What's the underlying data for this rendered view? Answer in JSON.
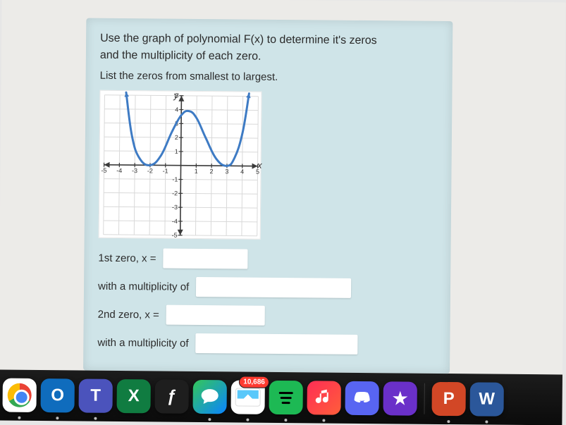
{
  "question": {
    "line1": "Use the graph of polynomial F(x) to determine it's zeros",
    "line2": "and the multiplicity of each zero.",
    "line3": "List the zeros from smallest to largest.",
    "answers": {
      "zero1_label": "1st zero, x =",
      "mult1_label": "with a multiplicity of",
      "zero2_label": "2nd zero, x =",
      "mult2_label": "with a multiplicity of"
    }
  },
  "chart": {
    "type": "line",
    "background_color": "#ffffff",
    "grid_color": "#d9d9d9",
    "axis_color": "#3a3a3a",
    "curve_color": "#3e7bc4",
    "curve_width": 3,
    "xlim": [
      -5,
      5
    ],
    "ylim": [
      -5,
      5
    ],
    "xtick_step": 1,
    "ytick_step": 1,
    "tick_labels_x": [
      "-5",
      "-4",
      "-3",
      "-2",
      "-1",
      "1",
      "2",
      "3",
      "4",
      "5"
    ],
    "tick_labels_y": [
      "-5",
      "-4",
      "-3",
      "-2",
      "-1",
      "1",
      "2",
      "3",
      "4",
      "5"
    ],
    "tick_label_fontsize": 9,
    "axis_label_fontsize": 13,
    "xlabel": "x",
    "ylabel": "y",
    "zeros": [
      {
        "x": -2,
        "multiplicity": 2
      },
      {
        "x": 3,
        "multiplicity": 2
      }
    ],
    "curve_points": [
      {
        "x": -3.6,
        "y": 5.2
      },
      {
        "x": -3.2,
        "y": 2.1
      },
      {
        "x": -2.7,
        "y": 0.5
      },
      {
        "x": -2.0,
        "y": 0.0
      },
      {
        "x": -1.3,
        "y": 0.7
      },
      {
        "x": -0.6,
        "y": 2.4
      },
      {
        "x": 0.0,
        "y": 3.6
      },
      {
        "x": 0.5,
        "y": 3.9
      },
      {
        "x": 1.0,
        "y": 3.4
      },
      {
        "x": 1.6,
        "y": 2.0
      },
      {
        "x": 2.3,
        "y": 0.5
      },
      {
        "x": 3.0,
        "y": 0.0
      },
      {
        "x": 3.5,
        "y": 0.6
      },
      {
        "x": 4.0,
        "y": 2.4
      },
      {
        "x": 4.4,
        "y": 5.2
      }
    ],
    "arrow_marker_size": 8
  },
  "dock": {
    "items": [
      {
        "name": "chrome",
        "letter": "",
        "bg": "bg-chrome",
        "running": true
      },
      {
        "name": "outlook",
        "letter": "O",
        "bg": "bg-outlook",
        "running": true
      },
      {
        "name": "teams",
        "letter": "T",
        "bg": "bg-teams",
        "running": true
      },
      {
        "name": "excel",
        "letter": "X",
        "bg": "bg-excel",
        "running": false
      },
      {
        "name": "finder",
        "letter": "ƒ",
        "bg": "bg-dark",
        "running": false
      },
      {
        "name": "messages",
        "letter": "",
        "bg": "bg-msg",
        "running": true
      },
      {
        "name": "mail",
        "letter": "",
        "bg": "bg-mail",
        "running": true,
        "badge": "10,686"
      },
      {
        "name": "spotify",
        "letter": "",
        "bg": "bg-spotify",
        "running": true
      },
      {
        "name": "music",
        "letter": "",
        "bg": "bg-music",
        "running": true
      },
      {
        "name": "discord",
        "letter": "",
        "bg": "bg-discord",
        "running": false
      },
      {
        "name": "imovie",
        "letter": "★",
        "bg": "bg-imovie",
        "running": false
      },
      {
        "name": "powerpoint",
        "letter": "P",
        "bg": "bg-ppt",
        "running": true
      },
      {
        "name": "word",
        "letter": "W",
        "bg": "bg-word",
        "running": true
      }
    ]
  }
}
